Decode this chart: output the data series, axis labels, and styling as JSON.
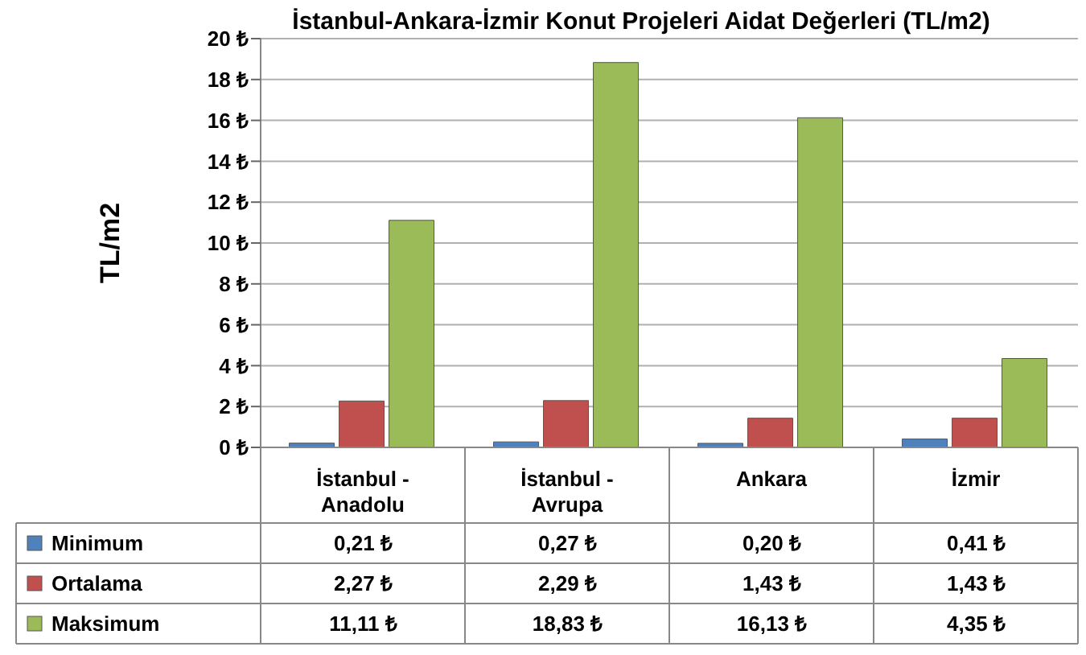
{
  "chart_data": {
    "type": "bar",
    "title": "İstanbul-Ankara-İzmir Konut Projeleri  Aidat Değerleri (TL/m2)",
    "ylabel": "TL/m2",
    "categories": [
      "İstanbul - Anadolu",
      "İstanbul - Avrupa",
      "Ankara",
      "İzmir"
    ],
    "series": [
      {
        "name": "Minimum",
        "color": "#4f81bd",
        "values": [
          0.21,
          0.27,
          0.2,
          0.41
        ],
        "value_labels": [
          "0,21 ₺",
          "0,27 ₺",
          "0,20 ₺",
          "0,41 ₺"
        ]
      },
      {
        "name": "Ortalama",
        "color": "#c0504d",
        "values": [
          2.27,
          2.29,
          1.43,
          1.43
        ],
        "value_labels": [
          "2,27 ₺",
          "2,29 ₺",
          "1,43 ₺",
          "1,43 ₺"
        ]
      },
      {
        "name": "Maksimum",
        "color": "#9bbb59",
        "values": [
          11.11,
          18.83,
          16.13,
          4.35
        ],
        "value_labels": [
          "11,11 ₺",
          "18,83 ₺",
          "16,13 ₺",
          "4,35 ₺"
        ]
      }
    ],
    "ylim": [
      0,
      20
    ],
    "yticks": [
      {
        "value": 0,
        "label": "0 ₺"
      },
      {
        "value": 2,
        "label": "2 ₺"
      },
      {
        "value": 4,
        "label": "4 ₺"
      },
      {
        "value": 6,
        "label": "6 ₺"
      },
      {
        "value": 8,
        "label": "8 ₺"
      },
      {
        "value": 10,
        "label": "10 ₺"
      },
      {
        "value": 12,
        "label": "12 ₺"
      },
      {
        "value": 14,
        "label": "14 ₺"
      },
      {
        "value": 16,
        "label": "16 ₺"
      },
      {
        "value": 18,
        "label": "18 ₺"
      },
      {
        "value": 20,
        "label": "20 ₺"
      }
    ],
    "grid": "y",
    "legend": "bottom"
  }
}
